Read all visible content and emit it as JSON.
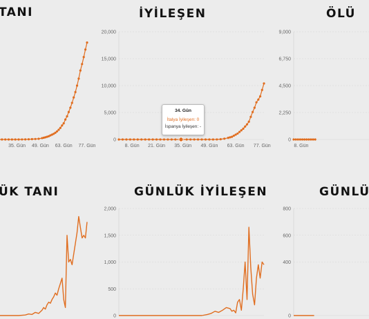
{
  "colors": {
    "accent": "#e06d1f",
    "background": "#ececec",
    "grid": "#d6d6d6"
  },
  "panels": [
    {
      "title": "TANI"
    },
    {
      "title": "İYİLEŞEN"
    },
    {
      "title": "ÖLÜ"
    },
    {
      "title": "ÜK TANI"
    },
    {
      "title": "GÜNLÜK İYİLEŞEN"
    },
    {
      "title": "GÜNLÜK"
    }
  ],
  "tooltip": {
    "title": "34. Gün",
    "line1": "İtalya İyileşen: 0",
    "line2": "İspanya İyileşen: -"
  },
  "chart_data": [
    {
      "id": "tani",
      "type": "line",
      "title": "TANI",
      "markers": true,
      "x_ticks": [
        35,
        49,
        63,
        77
      ],
      "x_tick_labels": [
        "35. Gün",
        "49. Gün",
        "63. Gün",
        "77. Gün"
      ],
      "y_ticks": [],
      "y_tick_labels": [],
      "xlim": [
        24,
        77
      ],
      "ylim": [
        0,
        20000
      ],
      "series": [
        {
          "x": [
            24,
            26,
            28,
            30,
            32,
            34,
            36,
            38,
            40,
            42,
            44,
            46,
            48,
            50,
            51,
            52,
            53,
            54,
            55,
            56,
            57,
            58,
            59,
            60,
            61,
            62,
            63,
            64,
            65,
            66,
            67,
            68,
            69,
            70,
            71,
            72,
            73,
            74,
            75,
            76,
            77
          ],
          "y": [
            0,
            0,
            0,
            0,
            0,
            0,
            0,
            10,
            20,
            40,
            60,
            90,
            130,
            250,
            320,
            400,
            500,
            600,
            750,
            900,
            1050,
            1250,
            1500,
            1800,
            2150,
            2600,
            3000,
            3700,
            4300,
            5100,
            5900,
            6800,
            7800,
            8800,
            10000,
            11300,
            12800,
            14000,
            15300,
            16700,
            18000
          ]
        }
      ]
    },
    {
      "id": "iyilesen",
      "type": "line",
      "title": "İYİLEŞEN",
      "markers": true,
      "x_ticks": [
        8,
        21,
        35,
        49,
        63,
        77
      ],
      "x_tick_labels": [
        "8. Gün",
        "21. Gün",
        "35. Gün",
        "49. Gün",
        "63. Gün",
        "77. Gün"
      ],
      "y_ticks": [
        0,
        5000,
        10000,
        15000,
        20000
      ],
      "y_tick_labels": [
        "0",
        "5,000",
        "10,000",
        "15,000",
        "20,000"
      ],
      "xlim": [
        1,
        78
      ],
      "ylim": [
        0,
        20000
      ],
      "series": [
        {
          "x": [
            1,
            3,
            5,
            7,
            9,
            11,
            13,
            15,
            17,
            19,
            21,
            23,
            25,
            27,
            29,
            31,
            33,
            35,
            37,
            39,
            41,
            43,
            45,
            47,
            49,
            51,
            53,
            55,
            57,
            59,
            60,
            61,
            62,
            63,
            64,
            65,
            66,
            67,
            68,
            69,
            70,
            71,
            72,
            73,
            74,
            75,
            76,
            77,
            78
          ],
          "y": [
            0,
            0,
            0,
            0,
            0,
            0,
            0,
            0,
            0,
            0,
            0,
            0,
            0,
            0,
            0,
            0,
            0,
            0,
            0,
            0,
            0,
            0,
            0,
            0,
            0,
            0,
            10,
            50,
            150,
            300,
            400,
            500,
            700,
            900,
            1100,
            1400,
            1700,
            2000,
            2400,
            2800,
            3300,
            4200,
            5100,
            5900,
            6900,
            7400,
            8000,
            9200,
            10400
          ]
        }
      ]
    },
    {
      "id": "olu",
      "type": "line",
      "title": "ÖLÜ",
      "markers": true,
      "x_ticks": [
        8
      ],
      "x_tick_labels": [
        "8. Gün"
      ],
      "y_ticks": [
        0,
        2250,
        4500,
        6750,
        9000
      ],
      "y_tick_labels": [
        "0",
        "2,250",
        "4,500",
        "6,750",
        "9,000"
      ],
      "xlim": [
        1,
        78
      ],
      "ylim": [
        0,
        9000
      ],
      "series": [
        {
          "x": [
            1,
            3,
            5,
            7,
            9,
            11,
            13,
            15,
            17,
            19,
            21
          ],
          "y": [
            0,
            0,
            0,
            0,
            0,
            0,
            0,
            0,
            0,
            0,
            0
          ]
        }
      ]
    },
    {
      "id": "gunluk-tani",
      "type": "line",
      "title": "ÜK TANI",
      "markers": false,
      "x_ticks": [],
      "x_tick_labels": [],
      "y_ticks": [],
      "y_tick_labels": [],
      "xlim": [
        24,
        77
      ],
      "ylim": [
        0,
        2000
      ],
      "series": [
        {
          "x": [
            24,
            30,
            36,
            40,
            42,
            44,
            46,
            48,
            50,
            51,
            52,
            53,
            54,
            55,
            56,
            57,
            58,
            59,
            60,
            61,
            62,
            63,
            64,
            65,
            66,
            67,
            68,
            69,
            70,
            71,
            72,
            73,
            74,
            75,
            76,
            77
          ],
          "y": [
            0,
            0,
            0,
            10,
            30,
            20,
            60,
            40,
            100,
            150,
            120,
            200,
            250,
            230,
            300,
            350,
            420,
            380,
            500,
            600,
            700,
            300,
            150,
            1500,
            1000,
            1050,
            950,
            1150,
            1350,
            1550,
            1850,
            1650,
            1450,
            1500,
            1450,
            1750
          ]
        }
      ]
    },
    {
      "id": "gunluk-iyilesen",
      "type": "line",
      "title": "GÜNLÜK İYİLEŞEN",
      "markers": false,
      "x_ticks": [],
      "x_tick_labels": [],
      "y_ticks": [
        0,
        500,
        1000,
        1500,
        2000
      ],
      "y_tick_labels": [
        "0",
        "500",
        "1,000",
        "1,500",
        "2,000"
      ],
      "xlim": [
        1,
        78
      ],
      "ylim": [
        0,
        2000
      ],
      "series": [
        {
          "x": [
            1,
            10,
            20,
            30,
            40,
            45,
            48,
            50,
            52,
            54,
            56,
            58,
            60,
            61,
            62,
            63,
            64,
            65,
            66,
            67,
            68,
            69,
            70,
            71,
            72,
            73,
            74,
            75,
            76,
            77,
            78
          ],
          "y": [
            0,
            0,
            0,
            0,
            0,
            0,
            20,
            40,
            80,
            60,
            100,
            150,
            130,
            80,
            100,
            50,
            250,
            300,
            100,
            500,
            1000,
            300,
            1650,
            900,
            400,
            200,
            700,
            950,
            700,
            1000,
            950
          ]
        }
      ]
    },
    {
      "id": "gunluk-olu",
      "type": "line",
      "title": "GÜNLÜK",
      "markers": false,
      "x_ticks": [],
      "x_tick_labels": [],
      "y_ticks": [
        0,
        400,
        600,
        800
      ],
      "y_tick_labels": [
        "0",
        "400",
        "600",
        "800"
      ],
      "xlim": [
        1,
        78
      ],
      "ylim": [
        0,
        800
      ],
      "series": [
        {
          "x": [
            1,
            5,
            10,
            15,
            20
          ],
          "y": [
            0,
            0,
            0,
            0,
            0
          ]
        }
      ]
    }
  ]
}
